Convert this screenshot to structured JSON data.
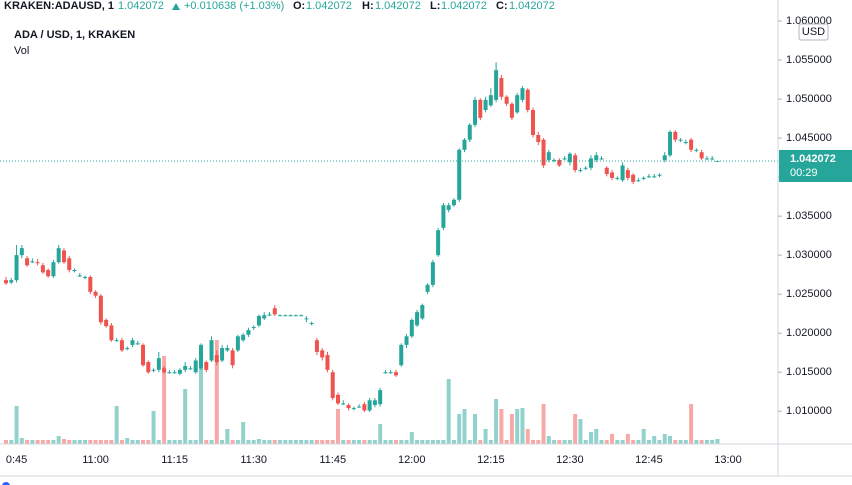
{
  "header": {
    "symbol": "KRAKEN:ADAUSD, 1",
    "last": "1.042072",
    "change": "+0.010638 (+1.03%)",
    "o_label": "O:",
    "o": "1.042072",
    "h_label": "H:",
    "h": "1.042072",
    "l_label": "L:",
    "l": "1.042072",
    "c_label": "C:",
    "c": "1.042072"
  },
  "chart_data": {
    "type": "candlestick",
    "title": "ADA / USD, 1, KRAKEN",
    "volume_label": "Vol",
    "y_axis_label": "USD",
    "grid": false,
    "up_color": "#26a69a",
    "down_color": "#ef5350",
    "categories": [
      null,
      null,
      "0:45",
      null,
      null,
      null,
      null,
      null,
      null,
      null,
      null,
      null,
      null,
      null,
      null,
      null,
      null,
      "11:00",
      null,
      null,
      null,
      null,
      null,
      null,
      null,
      null,
      null,
      null,
      null,
      null,
      null,
      null,
      "11:15",
      null,
      null,
      null,
      null,
      null,
      null,
      null,
      null,
      null,
      null,
      null,
      null,
      null,
      null,
      "11:30",
      null,
      null,
      null,
      null,
      null,
      null,
      null,
      null,
      null,
      null,
      null,
      null,
      null,
      null,
      "11:45",
      null,
      null,
      null,
      null,
      null,
      null,
      null,
      null,
      null,
      null,
      null,
      null,
      null,
      null,
      "12:00",
      null,
      null,
      null,
      null,
      null,
      null,
      null,
      null,
      null,
      null,
      null,
      null,
      null,
      null,
      "12:15",
      null,
      null,
      null,
      null,
      null,
      null,
      null,
      null,
      null,
      null,
      null,
      null,
      null,
      null,
      "12:30",
      null,
      null,
      null,
      null,
      null,
      null,
      null,
      null,
      null,
      null,
      null,
      null,
      null,
      null,
      "12:45",
      null,
      null,
      null,
      null,
      null,
      null,
      null,
      null,
      null,
      null,
      null,
      null,
      null,
      null,
      "13:00",
      null,
      null,
      null,
      null,
      null,
      null,
      null,
      null
    ],
    "open": [
      1.0268,
      1.0265,
      1.0268,
      1.03,
      1.0296,
      1.0292,
      1.0291,
      1.0287,
      1.0281,
      1.0273,
      1.0291,
      1.0306,
      1.0296,
      1.0281,
      1.0274,
      1.0272,
      1.0272,
      1.0253,
      1.0248,
      1.0217,
      1.021,
      1.0191,
      1.0191,
      1.0181,
      1.0185,
      1.0187,
      1.0185,
      1.0163,
      1.0153,
      1.0153,
      1.0155,
      1.015,
      1.015,
      1.0148,
      1.0153,
      1.0155,
      1.015,
      1.0155,
      1.0163,
      1.0165,
      1.0172,
      1.0165,
      1.0178,
      1.0178,
      1.0178,
      1.0191,
      1.0198,
      1.0208,
      1.021,
      1.0219,
      1.0224,
      1.0232,
      1.0223,
      1.0223,
      1.0223,
      1.0223,
      1.0223,
      1.0219,
      1.0213,
      1.0191,
      1.0178,
      1.0172,
      1.015,
      1.0121,
      1.011,
      1.0108,
      1.0104,
      1.0106,
      1.0109,
      1.0101,
      1.0108,
      1.0109,
      1.015,
      1.015,
      1.015,
      1.0159,
      1.0185,
      1.0196,
      1.021,
      1.0219,
      1.0253,
      1.0262,
      1.03,
      1.0335,
      1.0358,
      1.0364,
      1.0371,
      1.0435,
      1.0448,
      1.0467,
      1.0499,
      1.0486,
      1.0492,
      1.0499,
      1.0527,
      1.0503,
      1.0494,
      1.0483,
      1.0499,
      1.0512,
      1.0486,
      1.0454,
      1.0448,
      1.0422,
      1.0422,
      1.0422,
      1.0424,
      1.0419,
      1.0428,
      1.0409,
      1.0412,
      1.0412,
      1.0422,
      1.0424,
      1.0412,
      1.0406,
      1.0399,
      1.0396,
      1.0409,
      1.0403,
      1.0396,
      1.0399,
      1.0401,
      1.0401,
      1.0403,
      1.0422,
      1.0428,
      1.0458,
      1.0448,
      1.0445,
      1.0448,
      1.0435,
      1.0432,
      1.0424,
      1.0424,
      1.042072,
      null,
      null,
      null,
      null,
      null,
      null,
      null,
      null,
      null,
      null
    ],
    "high": [
      1.0272,
      1.0271,
      1.0313,
      1.0313,
      1.0299,
      1.0296,
      1.0295,
      1.029,
      1.0283,
      1.0294,
      1.0313,
      1.0309,
      1.0299,
      1.0283,
      1.0277,
      1.0274,
      1.0274,
      1.0255,
      1.025,
      1.0219,
      1.0213,
      1.0194,
      1.0194,
      1.0183,
      1.0194,
      1.019,
      1.0187,
      1.0165,
      1.0155,
      1.0176,
      1.0158,
      1.0153,
      1.0153,
      1.0155,
      1.0163,
      1.0158,
      1.0168,
      1.0187,
      1.0165,
      1.0196,
      1.0178,
      1.0185,
      1.0185,
      1.0181,
      1.0198,
      1.02,
      1.0207,
      1.021,
      1.0224,
      1.0227,
      1.0227,
      1.0236,
      1.0224,
      1.0224,
      1.0224,
      1.0224,
      1.0224,
      1.0222,
      1.0215,
      1.0194,
      1.0181,
      1.0176,
      1.0153,
      1.0124,
      1.0114,
      1.011,
      1.0106,
      1.0109,
      1.0112,
      1.0117,
      1.0117,
      1.013,
      1.0153,
      1.0153,
      1.0153,
      1.0187,
      1.0199,
      1.0219,
      1.023,
      1.0238,
      1.0264,
      1.0294,
      1.0335,
      1.0367,
      1.0367,
      1.0373,
      1.0437,
      1.045,
      1.0469,
      1.0503,
      1.0501,
      1.0503,
      1.0514,
      1.0547,
      1.0531,
      1.0505,
      1.0496,
      1.0508,
      1.0517,
      1.0514,
      1.0489,
      1.0458,
      1.045,
      1.0435,
      1.0424,
      1.0424,
      1.0427,
      1.0432,
      1.0431,
      1.0412,
      1.0414,
      1.0428,
      1.0432,
      1.0427,
      1.0414,
      1.0409,
      1.0401,
      1.0419,
      1.0412,
      1.0405,
      1.0399,
      1.0401,
      1.0404,
      1.0404,
      1.0405,
      1.0432,
      1.046,
      1.046,
      1.045,
      1.0448,
      1.045,
      1.0437,
      1.0435,
      1.0427,
      1.0427,
      1.042072,
      null,
      null,
      null,
      null,
      null,
      null,
      null,
      null,
      null,
      null
    ],
    "low": [
      1.0262,
      1.0263,
      1.0265,
      1.0296,
      1.0285,
      1.029,
      1.0287,
      1.0276,
      1.0271,
      1.0271,
      1.0289,
      1.0289,
      1.0278,
      1.0278,
      1.0272,
      1.0269,
      1.025,
      1.0245,
      1.0211,
      1.0207,
      1.0189,
      1.0189,
      1.0176,
      1.0178,
      1.0182,
      1.0185,
      1.0157,
      1.0148,
      1.015,
      1.015,
      1.0148,
      1.0148,
      1.0148,
      1.0146,
      1.015,
      1.0153,
      1.0148,
      1.0153,
      1.015,
      1.0163,
      1.0159,
      1.0163,
      1.0176,
      1.0155,
      1.0176,
      1.0189,
      1.0195,
      1.0204,
      1.0208,
      1.0217,
      1.0222,
      1.0222,
      1.0222,
      1.0222,
      1.0222,
      1.0222,
      1.0222,
      1.0214,
      1.021,
      1.0172,
      1.0165,
      1.015,
      1.0114,
      1.0108,
      1.0108,
      1.0101,
      1.0101,
      1.0104,
      1.0099,
      1.0099,
      1.0105,
      1.0106,
      1.0148,
      1.0148,
      1.0144,
      1.0157,
      1.0181,
      1.0194,
      1.0208,
      1.0217,
      1.025,
      1.0259,
      1.0298,
      1.0332,
      1.0355,
      1.0362,
      1.0368,
      1.0432,
      1.0445,
      1.0464,
      1.0473,
      1.0483,
      1.049,
      1.0496,
      1.0499,
      1.0491,
      1.0473,
      1.0481,
      1.0496,
      1.0483,
      1.0451,
      1.0441,
      1.0412,
      1.0419,
      1.0419,
      1.0413,
      1.0422,
      1.0415,
      1.0406,
      1.0406,
      1.0409,
      1.0409,
      1.0419,
      1.0422,
      1.0401,
      1.0396,
      1.0396,
      1.0394,
      1.0396,
      1.0391,
      1.0394,
      1.0396,
      1.0399,
      1.0399,
      1.04,
      1.0419,
      1.0426,
      1.0445,
      1.0445,
      1.0442,
      1.0432,
      1.0432,
      1.0422,
      1.0422,
      1.0422,
      1.042072,
      null,
      null,
      null,
      null,
      null,
      null,
      null,
      null,
      null,
      null
    ],
    "close": [
      1.0264,
      1.0268,
      1.03,
      1.0309,
      1.0287,
      1.0292,
      1.029,
      1.0278,
      1.0273,
      1.0291,
      1.0309,
      1.0291,
      1.0281,
      1.0281,
      1.0274,
      1.0272,
      1.0253,
      1.0248,
      1.0214,
      1.0209,
      1.0191,
      1.0191,
      1.0178,
      1.0181,
      1.0191,
      1.0187,
      1.0159,
      1.015,
      1.0153,
      1.0168,
      1.015,
      1.015,
      1.015,
      1.0153,
      1.0158,
      1.0155,
      1.0165,
      1.0185,
      1.0153,
      1.0191,
      1.0163,
      1.0181,
      1.0181,
      1.0159,
      1.0196,
      1.0198,
      1.0204,
      1.0208,
      1.0222,
      1.0223,
      1.0224,
      1.0224,
      1.0223,
      1.0223,
      1.0223,
      1.0223,
      1.0223,
      1.0219,
      1.0213,
      1.0176,
      1.0169,
      1.0153,
      1.0117,
      1.011,
      1.011,
      1.0104,
      1.0104,
      1.0106,
      1.0101,
      1.0114,
      1.0114,
      1.0127,
      1.015,
      1.015,
      1.0146,
      1.0185,
      1.0196,
      1.0217,
      1.0227,
      1.0236,
      1.0262,
      1.0291,
      1.0332,
      1.0364,
      1.0364,
      1.0371,
      1.0435,
      1.0448,
      1.0467,
      1.0499,
      1.0476,
      1.0499,
      1.0505,
      1.0537,
      1.0503,
      1.0494,
      1.0476,
      1.0505,
      1.0514,
      1.0486,
      1.0454,
      1.0445,
      1.0415,
      1.0432,
      1.0422,
      1.0415,
      1.0424,
      1.043,
      1.0409,
      1.0409,
      1.0412,
      1.0424,
      1.0428,
      1.0424,
      1.0404,
      1.0399,
      1.0399,
      1.0415,
      1.0399,
      1.0394,
      1.0396,
      1.0399,
      1.0401,
      1.0401,
      1.0403,
      1.0428,
      1.0458,
      1.0448,
      1.0448,
      1.0445,
      1.0435,
      1.0435,
      1.0424,
      1.0424,
      1.0424,
      1.042072,
      null,
      null,
      null,
      null,
      null,
      null,
      null,
      null,
      null,
      null
    ],
    "volume": [
      4,
      4,
      38,
      6,
      4,
      4,
      4,
      4,
      4,
      4,
      8,
      5,
      4,
      4,
      4,
      4,
      4,
      4,
      4,
      4,
      4,
      38,
      4,
      6,
      4,
      4,
      4,
      4,
      33,
      4,
      88,
      4,
      4,
      4,
      55,
      4,
      4,
      82,
      4,
      4,
      104,
      4,
      15,
      4,
      4,
      22,
      4,
      4,
      5,
      4,
      4,
      4,
      4,
      4,
      4,
      4,
      4,
      4,
      4,
      4,
      4,
      4,
      4,
      35,
      4,
      4,
      4,
      4,
      4,
      4,
      4,
      20,
      4,
      4,
      4,
      4,
      4,
      12,
      4,
      4,
      4,
      4,
      4,
      4,
      65,
      4,
      30,
      35,
      4,
      30,
      4,
      15,
      4,
      45,
      35,
      4,
      30,
      35,
      36,
      15,
      4,
      4,
      40,
      8,
      4,
      4,
      4,
      4,
      30,
      25,
      4,
      12,
      15,
      4,
      4,
      10,
      4,
      4,
      10,
      4,
      4,
      15,
      4,
      8,
      4,
      10,
      8,
      4,
      4,
      4,
      40,
      4,
      4,
      4,
      4,
      5,
      null,
      null,
      null,
      null,
      null,
      null,
      null,
      null,
      null,
      null
    ],
    "ylim": [
      1.0058,
      1.0627
    ],
    "yticks": [
      {
        "value": 1.06,
        "label": "1.060000"
      },
      {
        "value": 1.055,
        "label": "1.055000"
      },
      {
        "value": 1.05,
        "label": "1.050000"
      },
      {
        "value": 1.045,
        "label": "1.045000"
      },
      {
        "value": 1.04,
        "label": "1.040000"
      },
      {
        "value": 1.035,
        "label": "1.035000"
      },
      {
        "value": 1.03,
        "label": "1.030000"
      },
      {
        "value": 1.025,
        "label": "1.025000"
      },
      {
        "value": 1.02,
        "label": "1.020000"
      },
      {
        "value": 1.015,
        "label": "1.015000"
      },
      {
        "value": 1.01,
        "label": "1.010000"
      }
    ],
    "last_price": {
      "value": 1.042072,
      "label": "1.042072"
    },
    "countdown": "00:29"
  }
}
